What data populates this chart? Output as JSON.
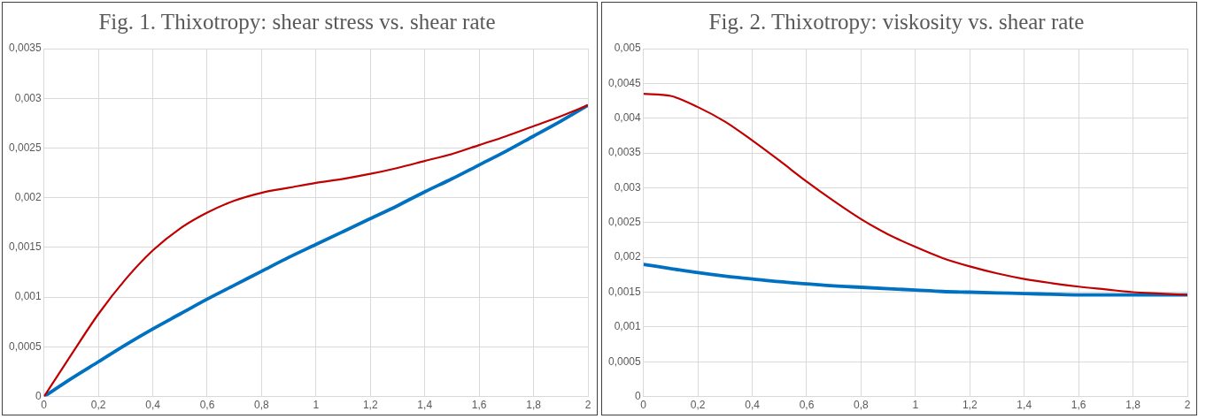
{
  "chart_data": [
    {
      "type": "line",
      "title": "Fig. 1. Thixotropy: shear stress vs. shear rate",
      "x": [
        0,
        0.1,
        0.2,
        0.3,
        0.4,
        0.5,
        0.6,
        0.7,
        0.8,
        0.9,
        1,
        1.1,
        1.2,
        1.3,
        1.4,
        1.5,
        1.6,
        1.7,
        1.8,
        1.9,
        2
      ],
      "series": [
        {
          "color": "#c00000",
          "values": [
            0,
            0.00042,
            0.00083,
            0.00118,
            0.00147,
            0.00169,
            0.00185,
            0.00197,
            0.00205,
            0.0021,
            0.00215,
            0.00219,
            0.00224,
            0.0023,
            0.00237,
            0.00244,
            0.00253,
            0.00262,
            0.00272,
            0.00282,
            0.00293
          ]
        },
        {
          "color": "#0070c0",
          "values": [
            0,
            0.00018,
            0.00035,
            0.00052,
            0.00068,
            0.00083,
            0.00098,
            0.00112,
            0.00126,
            0.0014,
            0.00153,
            0.00166,
            0.00179,
            0.00192,
            0.00206,
            0.00219,
            0.00233,
            0.00247,
            0.00262,
            0.00277,
            0.00293
          ]
        }
      ],
      "xlim": [
        0,
        2
      ],
      "xticks": [
        0,
        {
          "value": 0.2,
          "label": "0,2"
        },
        {
          "value": 0.4,
          "label": "0,4"
        },
        {
          "value": 0.6,
          "label": "0,6"
        },
        {
          "value": 0.8,
          "label": "0,8"
        },
        1,
        {
          "value": 1.2,
          "label": "1,2"
        },
        {
          "value": 1.4,
          "label": "1,4"
        },
        {
          "value": 1.6,
          "label": "1,6"
        },
        {
          "value": 1.8,
          "label": "1,8"
        },
        2
      ],
      "ylim": [
        0,
        0.0035
      ],
      "yticks": [
        0,
        {
          "value": 0.0005,
          "label": "0,0005"
        },
        {
          "value": 0.001,
          "label": "0,001"
        },
        {
          "value": 0.0015,
          "label": "0,0015"
        },
        {
          "value": 0.002,
          "label": "0,002"
        },
        {
          "value": 0.0025,
          "label": "0,0025"
        },
        {
          "value": 0.003,
          "label": "0,003"
        },
        {
          "value": 0.0035,
          "label": "0,0035"
        }
      ],
      "grid": true,
      "legend": false,
      "marker": "none",
      "line_style": "solid"
    },
    {
      "type": "line",
      "title": "Fig. 2. Thixotropy: viskosity vs. shear rate",
      "x": [
        0,
        0.1,
        0.2,
        0.3,
        0.4,
        0.5,
        0.6,
        0.7,
        0.8,
        0.9,
        1,
        1.1,
        1.2,
        1.3,
        1.4,
        1.5,
        1.6,
        1.7,
        1.8,
        1.9,
        2
      ],
      "series": [
        {
          "color": "#c00000",
          "values": [
            0.00435,
            0.00432,
            0.00416,
            0.00395,
            0.00368,
            0.00339,
            0.00309,
            0.00281,
            0.00255,
            0.00233,
            0.00215,
            0.00199,
            0.00187,
            0.00177,
            0.00169,
            0.00163,
            0.00158,
            0.00154,
            0.0015,
            0.00148,
            0.00146
          ]
        },
        {
          "color": "#0070c0",
          "values": [
            0.0019,
            0.00184,
            0.00178,
            0.00173,
            0.00169,
            0.00165,
            0.00162,
            0.00159,
            0.00157,
            0.00155,
            0.00153,
            0.00151,
            0.0015,
            0.00149,
            0.00148,
            0.00147,
            0.00146,
            0.00146,
            0.00146,
            0.00146,
            0.00146
          ]
        }
      ],
      "xlim": [
        0,
        2
      ],
      "xticks": [
        0,
        {
          "value": 0.2,
          "label": "0,2"
        },
        {
          "value": 0.4,
          "label": "0,4"
        },
        {
          "value": 0.6,
          "label": "0,6"
        },
        {
          "value": 0.8,
          "label": "0,8"
        },
        1,
        {
          "value": 1.2,
          "label": "1,2"
        },
        {
          "value": 1.4,
          "label": "1,4"
        },
        {
          "value": 1.6,
          "label": "1,6"
        },
        {
          "value": 1.8,
          "label": "1,8"
        },
        2
      ],
      "ylim": [
        0,
        0.005
      ],
      "yticks": [
        0,
        {
          "value": 0.0005,
          "label": "0,0005"
        },
        {
          "value": 0.001,
          "label": "0,001"
        },
        {
          "value": 0.0015,
          "label": "0,0015"
        },
        {
          "value": 0.002,
          "label": "0,002"
        },
        {
          "value": 0.0025,
          "label": "0,0025"
        },
        {
          "value": 0.003,
          "label": "0,003"
        },
        {
          "value": 0.0035,
          "label": "0,0035"
        },
        {
          "value": 0.004,
          "label": "0,004"
        },
        {
          "value": 0.0045,
          "label": "0,0045"
        },
        {
          "value": 0.005,
          "label": "0,005"
        }
      ],
      "grid": true,
      "legend": false,
      "marker": "none",
      "line_style": "solid"
    }
  ]
}
